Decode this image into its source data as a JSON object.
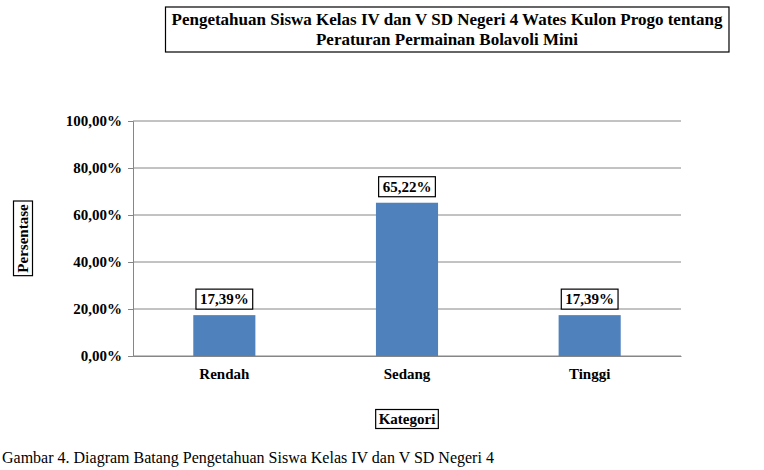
{
  "chart_data": {
    "type": "bar",
    "title": "Pengetahuan Siswa Kelas IV dan V SD Negeri 4 Wates Kulon Progo tentang Peraturan Permainan Bolavoli Mini",
    "x_label": "Kategori",
    "y_label": "Persentase",
    "annotations": [
      "Gambar 4. Diagram Batang Pengetahuan Siswa Kelas IV dan V SD Negeri 4"
    ],
    "categories": [
      "Rendah",
      "Sedang",
      "Tinggi"
    ],
    "values": [
      17.39,
      65.22,
      17.39
    ],
    "value_labels": [
      "17,39%",
      "65,22%",
      "17,39%"
    ],
    "color": "#4f81bd",
    "ylim": [
      0,
      100
    ],
    "yticks": [
      {
        "value": 0,
        "label": "0,00%"
      },
      {
        "value": 20,
        "label": "20,00%"
      },
      {
        "value": 40,
        "label": "40,00%"
      },
      {
        "value": 60,
        "label": "60,00%"
      },
      {
        "value": 80,
        "label": "80,00%"
      },
      {
        "value": 100,
        "label": "100,00%"
      }
    ],
    "grid": true,
    "data_labels": true
  }
}
